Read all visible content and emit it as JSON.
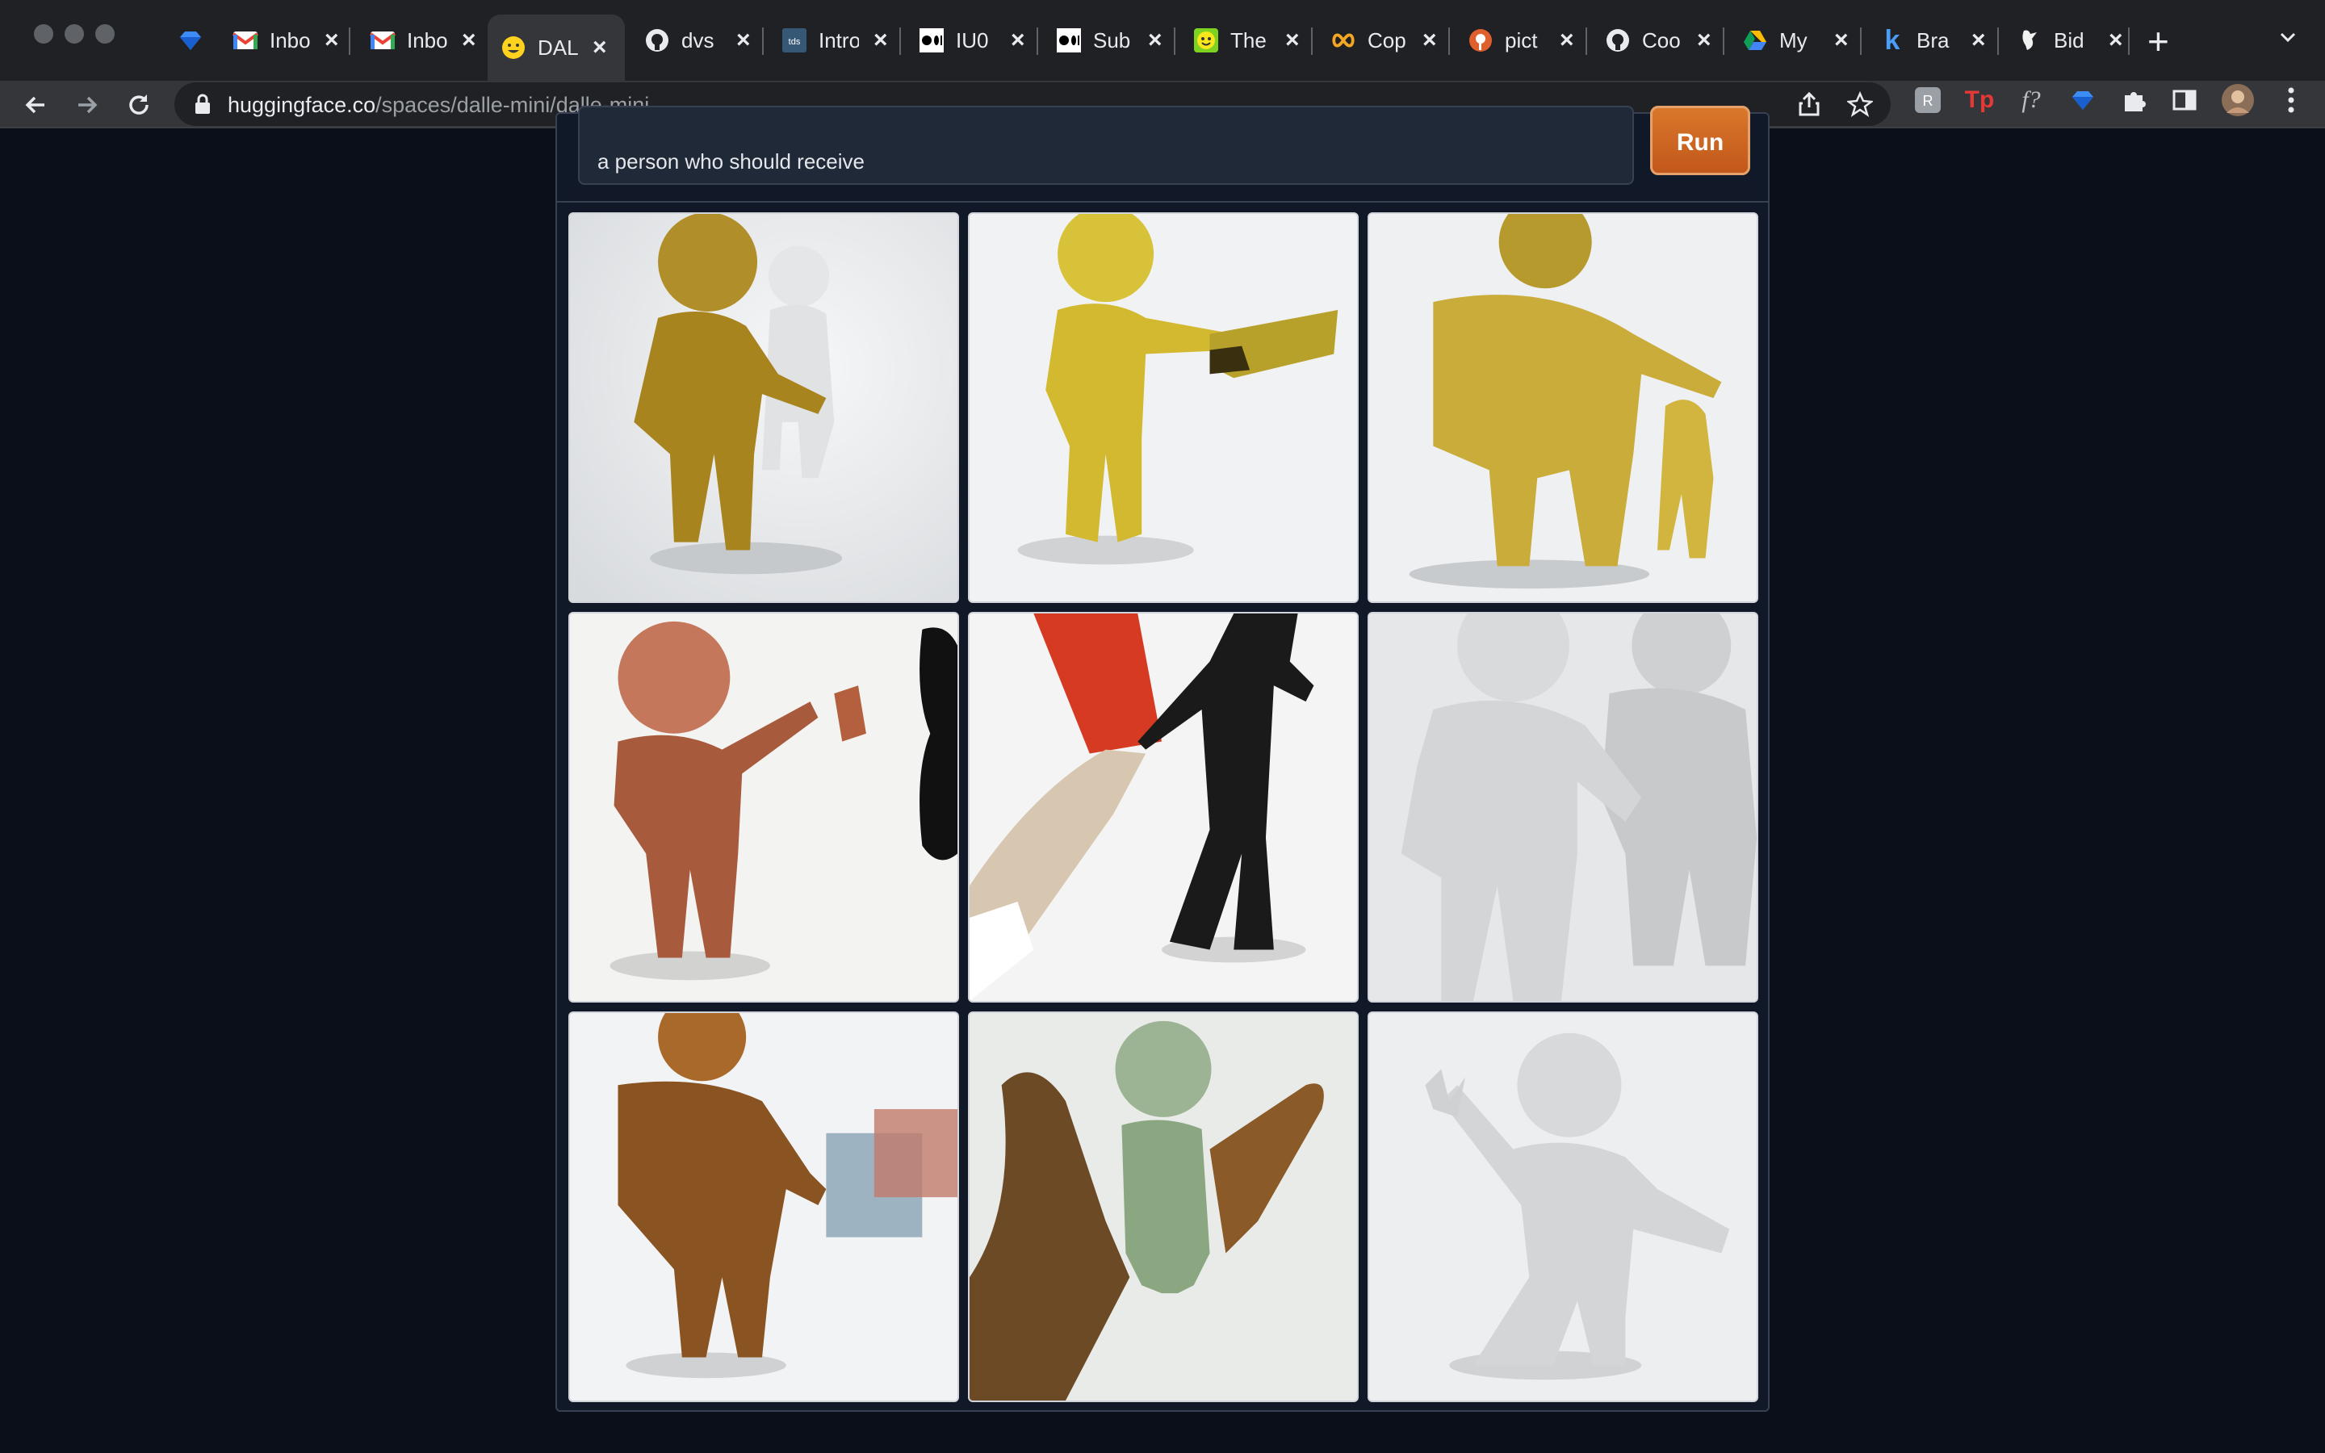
{
  "browser": {
    "tabs": [
      {
        "label": "",
        "icon": "gem-icon"
      },
      {
        "label": "Inbox",
        "icon": "gmail-icon"
      },
      {
        "label": "Inbox",
        "icon": "gmail-icon"
      },
      {
        "label": "DALL",
        "icon": "huggingface-icon",
        "active": true
      },
      {
        "label": "dvs",
        "icon": "github-icon"
      },
      {
        "label": "Intro",
        "icon": "tds-icon"
      },
      {
        "label": "IU0",
        "icon": "medium-icon"
      },
      {
        "label": "Sub",
        "icon": "medium-icon"
      },
      {
        "label": "The",
        "icon": "smiley-icon"
      },
      {
        "label": "Cop",
        "icon": "infinity-icon"
      },
      {
        "label": "pict",
        "icon": "pinterest-icon"
      },
      {
        "label": "Coo",
        "icon": "github-icon"
      },
      {
        "label": "My",
        "icon": "drive-icon"
      },
      {
        "label": "Bra",
        "icon": "k-icon"
      },
      {
        "label": "Bid",
        "icon": "bird-icon"
      }
    ],
    "url_host": "huggingface.co",
    "url_path": "/spaces/dalle-mini/dalle-mini"
  },
  "app": {
    "prompt_value": "a person who should receive",
    "run_label": "Run",
    "accent_color": "#c2571b"
  },
  "gallery": {
    "images": [
      {
        "description_icon": "gold-figure-with-white-figure"
      },
      {
        "description_icon": "yellow-figure-handing-paper"
      },
      {
        "description_icon": "gold-figure-with-small-figure"
      },
      {
        "description_icon": "terracotta-figure-waving"
      },
      {
        "description_icon": "hand-giving-red-card-to-black-figure"
      },
      {
        "description_icon": "two-white-figures"
      },
      {
        "description_icon": "brown-figure-holding-box"
      },
      {
        "description_icon": "green-figure-between-hands"
      },
      {
        "description_icon": "white-figure-waving"
      }
    ]
  }
}
